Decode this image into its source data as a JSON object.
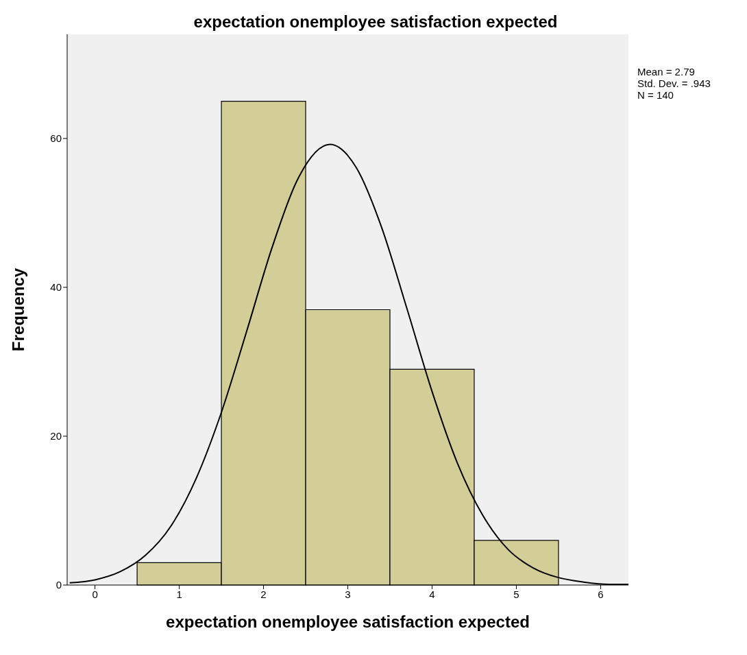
{
  "chart_data": {
    "type": "histogram",
    "title": "expectation onemployee satisfaction expected",
    "xlabel": "expectation onemployee satisfaction expected",
    "ylabel": "Frequency",
    "bins": [
      0.5,
      1.5,
      2.5,
      3.5,
      4.5,
      5.5
    ],
    "values": [
      3,
      65,
      37,
      29,
      6
    ],
    "color": "#d3ce98",
    "series": [
      {
        "type": "line",
        "color": "#000000",
        "marker": "none",
        "x": [
          -0.3,
          0,
          0.3,
          0.6,
          0.9,
          1.2,
          1.5,
          1.8,
          2.1,
          2.4,
          2.79,
          3.1,
          3.4,
          3.7,
          4.0,
          4.3,
          4.6,
          4.9,
          5.2,
          5.5,
          5.8,
          6.1,
          6.33
        ],
        "values": [
          0.3,
          0.7,
          1.8,
          4.0,
          7.9,
          14.3,
          23.2,
          34.1,
          45.3,
          54.4,
          59.2,
          56.1,
          48.1,
          37.2,
          26.0,
          16.4,
          9.4,
          4.8,
          2.3,
          1.0,
          0.4,
          0.1,
          0.1
        ]
      }
    ],
    "xlim": [
      -0.33,
      6.33
    ],
    "ylim": [
      0,
      74
    ],
    "xticks": [
      0,
      1,
      2,
      3,
      4,
      5,
      6
    ],
    "yticks": [
      0,
      20,
      40,
      60
    ],
    "annotations": [
      "Mean = 2.79",
      "Std. Dev. = .943",
      "N = 140"
    ]
  }
}
